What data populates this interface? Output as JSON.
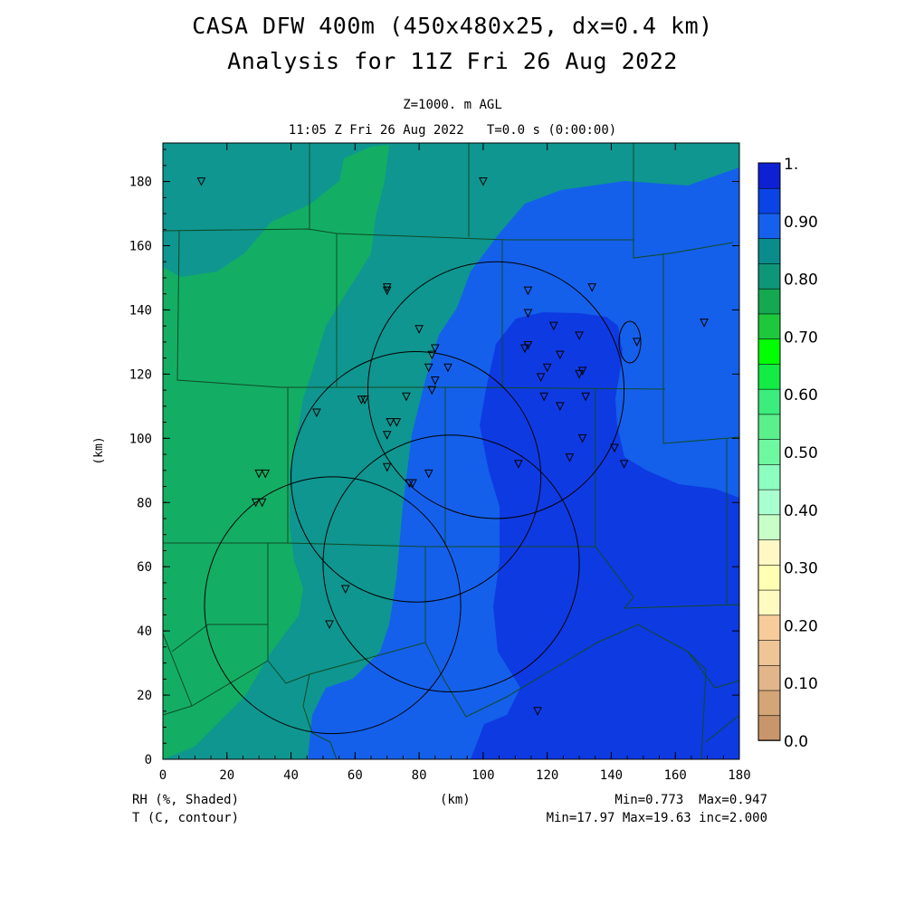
{
  "header": {
    "title_line1": "CASA DFW 400m (450x480x25, dx=0.4 km)",
    "title_line2": "Analysis for 11Z Fri 26 Aug 2022",
    "level": "Z=1000. m AGL",
    "time": "11:05 Z Fri 26 Aug 2022   T=0.0 s (0:00:00)"
  },
  "axes": {
    "x_label": "(km)",
    "y_label": "(km)",
    "x_range": [
      0,
      180
    ],
    "y_range": [
      0,
      192
    ],
    "x_ticks": [
      "0",
      "20",
      "40",
      "60",
      "80",
      "100",
      "120",
      "140",
      "160",
      "180"
    ],
    "y_ticks": [
      "0",
      "20",
      "40",
      "60",
      "80",
      "100",
      "120",
      "140",
      "160",
      "180"
    ]
  },
  "colorbar": {
    "levels": [
      "0.0",
      "0.10",
      "0.20",
      "0.30",
      "0.40",
      "0.50",
      "0.60",
      "0.70",
      "0.80",
      "0.90",
      "1."
    ],
    "colors": [
      "#c8966a",
      "#d4a577",
      "#e2b68a",
      "#f0c596",
      "#f8cc9a",
      "#fffac0",
      "#ffffb4",
      "#fff8c4",
      "#c8ffc8",
      "#aaffd0",
      "#8cffc0",
      "#6ef8a0",
      "#5af08c",
      "#3cec7c",
      "#12ec44",
      "#00ff00",
      "#1ec83c",
      "#14a850",
      "#0e9678",
      "#0a8c8c",
      "#1660ee",
      "#0a44e6",
      "#0e20d4"
    ]
  },
  "footer": {
    "shaded": "RH (%, Shaded)",
    "contour": "T (C, contour)",
    "x_unit": "(km)",
    "shaded_stats": "Min=0.773  Max=0.947",
    "contour_stats": "Min=17.97 Max=19.63 inc=2.000"
  },
  "map_data": {
    "field": "RH",
    "regions": [
      {
        "name": "teal-west",
        "color": "#0f9690"
      },
      {
        "name": "green-west",
        "color": "#13ae64"
      },
      {
        "name": "blue-mid",
        "color": "#1460ea"
      },
      {
        "name": "blue-deep",
        "color": "#0e3ae2"
      }
    ],
    "radar_rings_km": [
      {
        "cx": 104,
        "cy": 115,
        "r": 40
      },
      {
        "cx": 79,
        "cy": 88,
        "r": 39
      },
      {
        "cx": 90,
        "cy": 61,
        "r": 40
      },
      {
        "cx": 53,
        "cy": 48,
        "r": 40
      }
    ],
    "stations_km": [
      [
        12,
        180
      ],
      [
        100,
        180
      ],
      [
        70,
        147
      ],
      [
        70,
        146
      ],
      [
        114,
        146
      ],
      [
        134,
        147
      ],
      [
        114,
        139
      ],
      [
        80,
        134
      ],
      [
        122,
        135
      ],
      [
        85,
        128
      ],
      [
        84,
        126
      ],
      [
        114,
        129
      ],
      [
        113,
        128
      ],
      [
        124,
        126
      ],
      [
        130,
        132
      ],
      [
        148,
        130
      ],
      [
        169,
        136
      ],
      [
        89,
        122
      ],
      [
        83,
        122
      ],
      [
        120,
        122
      ],
      [
        118,
        119
      ],
      [
        131,
        121
      ],
      [
        130,
        120
      ],
      [
        85,
        118
      ],
      [
        84,
        115
      ],
      [
        76,
        113
      ],
      [
        63,
        112
      ],
      [
        62,
        112
      ],
      [
        71,
        105
      ],
      [
        73,
        105
      ],
      [
        119,
        113
      ],
      [
        124,
        110
      ],
      [
        132,
        113
      ],
      [
        48,
        108
      ],
      [
        70,
        101
      ],
      [
        131,
        100
      ],
      [
        141,
        97
      ],
      [
        144,
        92
      ],
      [
        127,
        94
      ],
      [
        111,
        92
      ],
      [
        83,
        89
      ],
      [
        70,
        91
      ],
      [
        78,
        86
      ],
      [
        77,
        86
      ],
      [
        32,
        89
      ],
      [
        30,
        89
      ],
      [
        31,
        80
      ],
      [
        29,
        80
      ],
      [
        57,
        53
      ],
      [
        52,
        42
      ],
      [
        117,
        15
      ]
    ]
  }
}
